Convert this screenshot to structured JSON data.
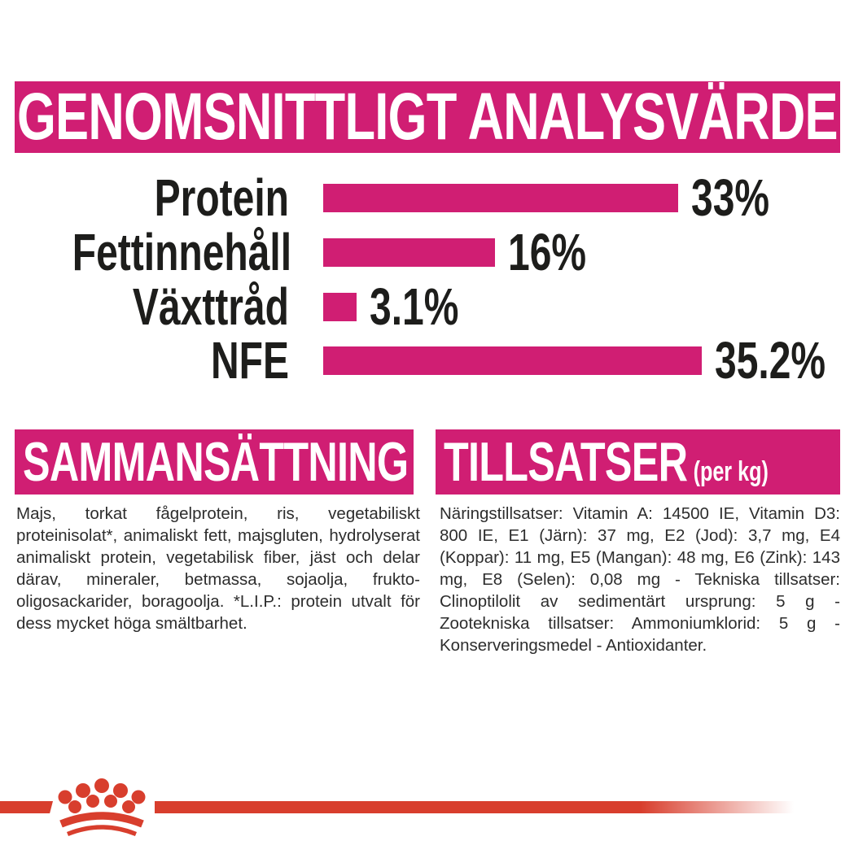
{
  "header": {
    "title": "GENOMSNITTLIGT ANALYSVÄRDE",
    "background": "#d01e73",
    "text_color": "#ffffff"
  },
  "chart_data": {
    "type": "bar",
    "orientation": "horizontal",
    "title": "GENOMSNITTLIGT ANALYSVÄRDE",
    "categories": [
      "Protein",
      "Fettinnehåll",
      "Växttråd",
      "NFE"
    ],
    "values": [
      33,
      16,
      3.1,
      35.2
    ],
    "value_labels": [
      "33%",
      "16%",
      "3.1%",
      "35.2%"
    ],
    "unit": "%",
    "xlim": [
      0,
      38
    ],
    "bar_color": "#d01e73",
    "label_color": "#1d1d1b",
    "grid": false,
    "legend": false
  },
  "sections": {
    "composition": {
      "title": "SAMMANSÄTTNING",
      "body": "Majs, torkat fågelprotein, ris, vegetabiliskt proteinisolat*, animaliskt fett, majsgluten, hydrolyserat animaliskt protein, vegetabilisk fiber, jäst och delar därav, mineraler, betmassa, sojaolja, frukto-oligosackarider, boragoolja. *L.I.P.: protein utvalt för dess mycket höga smältbarhet."
    },
    "additives": {
      "title": "TILLSATSER",
      "title_suffix": "(per kg)",
      "body": "Näringstillsatser: Vitamin A: 14500 IE, Vitamin D3: 800 IE, E1 (Järn): 37 mg, E2 (Jod): 3,7 mg, E4 (Koppar): 11 mg, E5 (Mangan): 48 mg, E6 (Zink): 143 mg, E8 (Selen): 0,08 mg - Tekniska tillsatser: Clinoptilolit av sedimentärt ursprung: 5 g - Zootekniska tillsatser: Ammoniumklorid: 5 g - Konserveringsmedel - Antioxidanter."
    }
  },
  "footer": {
    "brand_mark": "royal-canin-crown",
    "accent_color": "#d83e2d"
  }
}
